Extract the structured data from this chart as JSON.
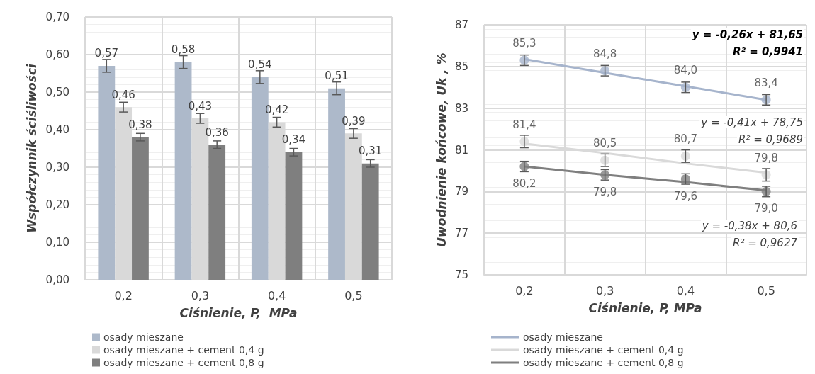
{
  "chart_data": [
    {
      "type": "bar",
      "xlabel": "Ciśnienie, P,  MPa",
      "ylabel": "Współczynnik ściśliwości",
      "categories": [
        "0,2",
        "0,3",
        "0,4",
        "0,5"
      ],
      "series": [
        {
          "name": "osady mieszane",
          "color": "#adb9ca",
          "values": [
            0.57,
            0.58,
            0.54,
            0.51
          ],
          "errors": [
            0.017,
            0.017,
            0.017,
            0.017
          ],
          "value_labels": [
            "0,57",
            "0,58",
            "0,54",
            "0,51"
          ]
        },
        {
          "name": "osady mieszane + cement 0,4 g",
          "color": "#d9d9d9",
          "values": [
            0.46,
            0.43,
            0.42,
            0.39
          ],
          "errors": [
            0.013,
            0.013,
            0.013,
            0.013
          ],
          "value_labels": [
            "0,46",
            "0,43",
            "0,42",
            "0,39"
          ]
        },
        {
          "name": "osady mieszane + cement 0,8 g",
          "color": "#7f7f7f",
          "values": [
            0.38,
            0.36,
            0.34,
            0.31
          ],
          "errors": [
            0.01,
            0.01,
            0.01,
            0.01
          ],
          "value_labels": [
            "0,38",
            "0,36",
            "0,34",
            "0,31"
          ]
        }
      ],
      "ylim": [
        0,
        0.7
      ],
      "yticks": [
        {
          "value": 0,
          "label": "0,00"
        },
        {
          "value": 0.1,
          "label": "0,10"
        },
        {
          "value": 0.2,
          "label": "0,20"
        },
        {
          "value": 0.3,
          "label": "0,30"
        },
        {
          "value": 0.4,
          "label": "0,40"
        },
        {
          "value": 0.5,
          "label": "0,50"
        },
        {
          "value": 0.6,
          "label": "0,60"
        },
        {
          "value": 0.7,
          "label": "0,70"
        }
      ],
      "grid": true,
      "legend": "bottom"
    },
    {
      "type": "line",
      "xlabel": "Ciśnienie, P, MPa",
      "ylabel": "Uwodnienie końcowe, Uk , %",
      "categories": [
        "0,2",
        "0,3",
        "0,4",
        "0,5"
      ],
      "series": [
        {
          "type": "scatter",
          "x": [
            "0,2",
            "0,3",
            "0,4",
            "0,5"
          ],
          "color": "#a6b4cc",
          "values": [
            85.3,
            84.8,
            84.0,
            83.4
          ],
          "errors": [
            0.25,
            0.25,
            0.25,
            0.25
          ],
          "value_labels": [
            "85,3",
            "84,8",
            "84,0",
            "83,4"
          ]
        },
        {
          "type": "scatter",
          "x": [
            "0,2",
            "0,3",
            "0,4",
            "0,5"
          ],
          "color": "#d9d9d9",
          "values": [
            81.4,
            80.5,
            80.7,
            79.8
          ],
          "errors": [
            0.3,
            0.3,
            0.3,
            0.3
          ],
          "value_labels": [
            "81,4",
            "80,5",
            "80,7",
            "79,8"
          ]
        },
        {
          "type": "scatter",
          "x": [
            "0,2",
            "0,3",
            "0,4",
            "0,5"
          ],
          "color": "#7f7f7f",
          "values": [
            80.2,
            79.8,
            79.6,
            79.0
          ],
          "errors": [
            0.25,
            0.25,
            0.25,
            0.25
          ],
          "value_labels": [
            "80,2",
            "79,8",
            "79,6",
            "79,0"
          ]
        },
        {
          "name": "osady mieszane",
          "type": "line",
          "color": "#a6b4cc",
          "values": [
            85.35,
            84.7,
            84.05,
            83.4
          ]
        },
        {
          "name": "osady mieszane + cement 0,4 g",
          "type": "line",
          "color": "#d9d9d9",
          "values": [
            81.3,
            80.85,
            80.35,
            79.9
          ]
        },
        {
          "name": "osady mieszane + cement 0,8 g",
          "type": "line",
          "color": "#7f7f7f",
          "values": [
            80.2,
            79.8,
            79.45,
            79.05
          ]
        }
      ],
      "ylim": [
        75,
        87
      ],
      "yticks": [
        75,
        77,
        79,
        81,
        83,
        85,
        87
      ],
      "line_style": "solid",
      "annotations": [
        "y = -0,26x + 81,65",
        "R² = 0,9941",
        "y = -0,41x + 78,75",
        "R² = 0,9689",
        "y = -0,38x + 80,6",
        "R² = 0,9627"
      ],
      "grid": true,
      "legend": "bottom"
    }
  ]
}
